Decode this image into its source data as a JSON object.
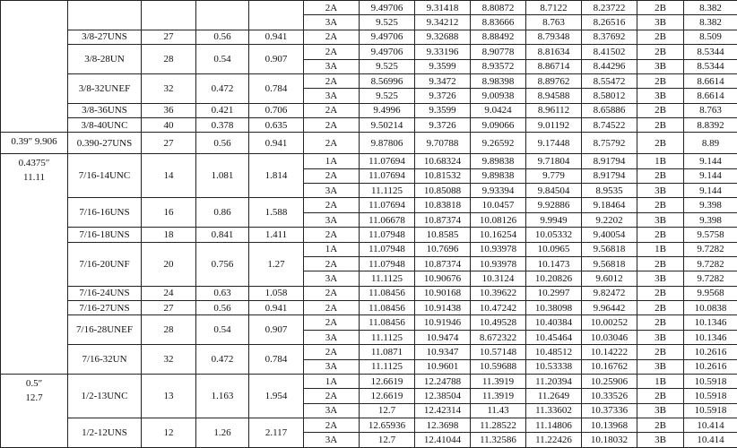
{
  "table": {
    "sizes": [
      {
        "threads": [
          {
            "classes": [
              [
                "2A",
                "9.49706",
                "9.31418",
                "8.80872",
                "8.7122",
                "8.23722",
                "2B",
                "8.382"
              ],
              [
                "3A",
                "9.525",
                "9.34212",
                "8.83666",
                "8.763",
                "8.26516",
                "3B",
                "8.382"
              ]
            ]
          },
          {
            "designation": "3/8-27UNS",
            "tpi": "27",
            "c3": "0.56",
            "c4": "0.941",
            "classes": [
              [
                "2A",
                "9.49706",
                "9.32688",
                "8.88492",
                "8.79348",
                "8.37692",
                "2B",
                "8.509"
              ]
            ]
          },
          {
            "designation": "3/8-28UN",
            "tpi": "28",
            "c3": "0.54",
            "c4": "0.907",
            "classes": [
              [
                "2A",
                "9.49706",
                "9.33196",
                "8.90778",
                "8.81634",
                "8.41502",
                "2B",
                "8.5344"
              ],
              [
                "3A",
                "9.525",
                "9.3599",
                "8.93572",
                "8.86714",
                "8.44296",
                "3B",
                "8.5344"
              ]
            ]
          },
          {
            "designation": "3/8-32UNEF",
            "tpi": "32",
            "c3": "0.472",
            "c4": "0.784",
            "classes": [
              [
                "2A",
                "8.56996",
                "9.3472",
                "8.98398",
                "8.89762",
                "8.55472",
                "2B",
                "8.6614"
              ],
              [
                "3A",
                "9.525",
                "9.3726",
                "9.00938",
                "8.94588",
                "8.58012",
                "3B",
                "8.6614"
              ]
            ]
          },
          {
            "designation": "3/8-36UNS",
            "tpi": "36",
            "c3": "0.421",
            "c4": "0.706",
            "classes": [
              [
                "2A",
                "9.4996",
                "9.3599",
                "9.0424",
                "8.96112",
                "8.65886",
                "2B",
                "8.763"
              ]
            ]
          },
          {
            "designation": "3/8-40UNC",
            "tpi": "40",
            "c3": "0.378",
            "c4": "0.635",
            "classes": [
              [
                "2A",
                "9.50214",
                "9.3726",
                "9.09066",
                "9.01192",
                "8.74522",
                "2B",
                "8.8392"
              ]
            ]
          }
        ]
      },
      {
        "diameter": [
          "0.39″ 9.906"
        ],
        "threads": [
          {
            "designation": "0.390-27UNS",
            "tpi": "27",
            "c3": "0.56",
            "c4": "0.941",
            "classes": [
              [
                "2A",
                "9.87806",
                "9.70788",
                "9.26592",
                "9.17448",
                "8.75792",
                "2B",
                "8.89"
              ]
            ]
          }
        ]
      },
      {
        "diameter": [
          "0.4375″",
          "11.11"
        ],
        "threads": [
          {
            "designation": "7/16-14UNC",
            "tpi": "14",
            "c3": "1.081",
            "c4": "1.814",
            "classes": [
              [
                "1A",
                "11.07694",
                "10.68324",
                "9.89838",
                "9.71804",
                "8.91794",
                "1B",
                "9.144"
              ],
              [
                "2A",
                "11.07694",
                "10.81532",
                "9.89838",
                "9.779",
                "8.91794",
                "2B",
                "9.144"
              ],
              [
                "3A",
                "11.1125",
                "10.85088",
                "9.93394",
                "9.84504",
                "8.9535",
                "3B",
                "9.144"
              ]
            ]
          },
          {
            "designation": "7/16-16UNS",
            "tpi": "16",
            "c3": "0.86",
            "c4": "1.588",
            "classes": [
              [
                "2A",
                "11.07694",
                "10.83818",
                "10.0457",
                "9.92886",
                "9.18464",
                "2B",
                "9.398"
              ],
              [
                "3A",
                "11.06678",
                "10.87374",
                "10.08126",
                "9.9949",
                "9.2202",
                "3B",
                "9.398"
              ]
            ]
          },
          {
            "designation": "7/16-18UNS",
            "tpi": "18",
            "c3": "0.841",
            "c4": "1.411",
            "classes": [
              [
                "2A",
                "11.07948",
                "10.8585",
                "10.16254",
                "10.05332",
                "9.40054",
                "2B",
                "9.5758"
              ]
            ]
          },
          {
            "designation": "7/16-20UNF",
            "tpi": "20",
            "c3": "0.756",
            "c4": "1.27",
            "classes": [
              [
                "1A",
                "11.07948",
                "10.7696",
                "10.93978",
                "10.0965",
                "9.56818",
                "1B",
                "9.7282"
              ],
              [
                "2A",
                "11.07948",
                "10.87374",
                "10.93978",
                "10.1473",
                "9.56818",
                "2B",
                "9.7282"
              ],
              [
                "3A",
                "11.1125",
                "10.90676",
                "10.3124",
                "10.20826",
                "9.6012",
                "3B",
                "9.7282"
              ]
            ]
          },
          {
            "designation": "7/16-24UNS",
            "tpi": "24",
            "c3": "0.63",
            "c4": "1.058",
            "classes": [
              [
                "2A",
                "11.08456",
                "10.90168",
                "10.39622",
                "10.2997",
                "9.82472",
                "2B",
                "9.9568"
              ]
            ]
          },
          {
            "designation": "7/16-27UNS",
            "tpi": "27",
            "c3": "0.56",
            "c4": "0.941",
            "classes": [
              [
                "2A",
                "11.08456",
                "10.91438",
                "10.47242",
                "10.38098",
                "9.96442",
                "2B",
                "10.0838"
              ]
            ]
          },
          {
            "designation": "7/16-28UNEF",
            "tpi": "28",
            "c3": "0.54",
            "c4": "0.907",
            "classes": [
              [
                "2A",
                "11.08456",
                "10.91946",
                "10.49528",
                "10.40384",
                "10.00252",
                "2B",
                "10.1346"
              ],
              [
                "3A",
                "11.1125",
                "10.9474",
                "8.672322",
                "10.45464",
                "10.03046",
                "3B",
                "10.1346"
              ]
            ]
          },
          {
            "designation": "7/16-32UN",
            "tpi": "32",
            "c3": "0.472",
            "c4": "0.784",
            "classes": [
              [
                "2A",
                "11.0871",
                "10.9347",
                "10.57148",
                "10.48512",
                "10.14222",
                "2B",
                "10.2616"
              ],
              [
                "3A",
                "11.1125",
                "10.9601",
                "10.59688",
                "10.53338",
                "10.16762",
                "3B",
                "10.2616"
              ]
            ]
          }
        ]
      },
      {
        "diameter": [
          "0.5″",
          "12.7"
        ],
        "threads": [
          {
            "designation": "1/2-13UNC",
            "tpi": "13",
            "c3": "1.163",
            "c4": "1.954",
            "classes": [
              [
                "1A",
                "12.6619",
                "12.24788",
                "11.3919",
                "11.20394",
                "10.25906",
                "1B",
                "10.5918"
              ],
              [
                "2A",
                "12.6619",
                "12.38504",
                "11.3919",
                "11.2649",
                "10.33526",
                "2B",
                "10.5918"
              ],
              [
                "3A",
                "12.7",
                "12.42314",
                "11.43",
                "11.33602",
                "10.37336",
                "3B",
                "10.5918"
              ]
            ]
          },
          {
            "designation": "1/2-12UNS",
            "tpi": "12",
            "c3": "1.26",
            "c4": "2.117",
            "classes": [
              [
                "2A",
                "12.65936",
                "12.3698",
                "11.28522",
                "11.14806",
                "10.13968",
                "2B",
                "10.414"
              ],
              [
                "3A",
                "12.7",
                "12.41044",
                "11.32586",
                "11.22426",
                "10.18032",
                "3B",
                "10.414"
              ]
            ]
          }
        ]
      }
    ]
  }
}
